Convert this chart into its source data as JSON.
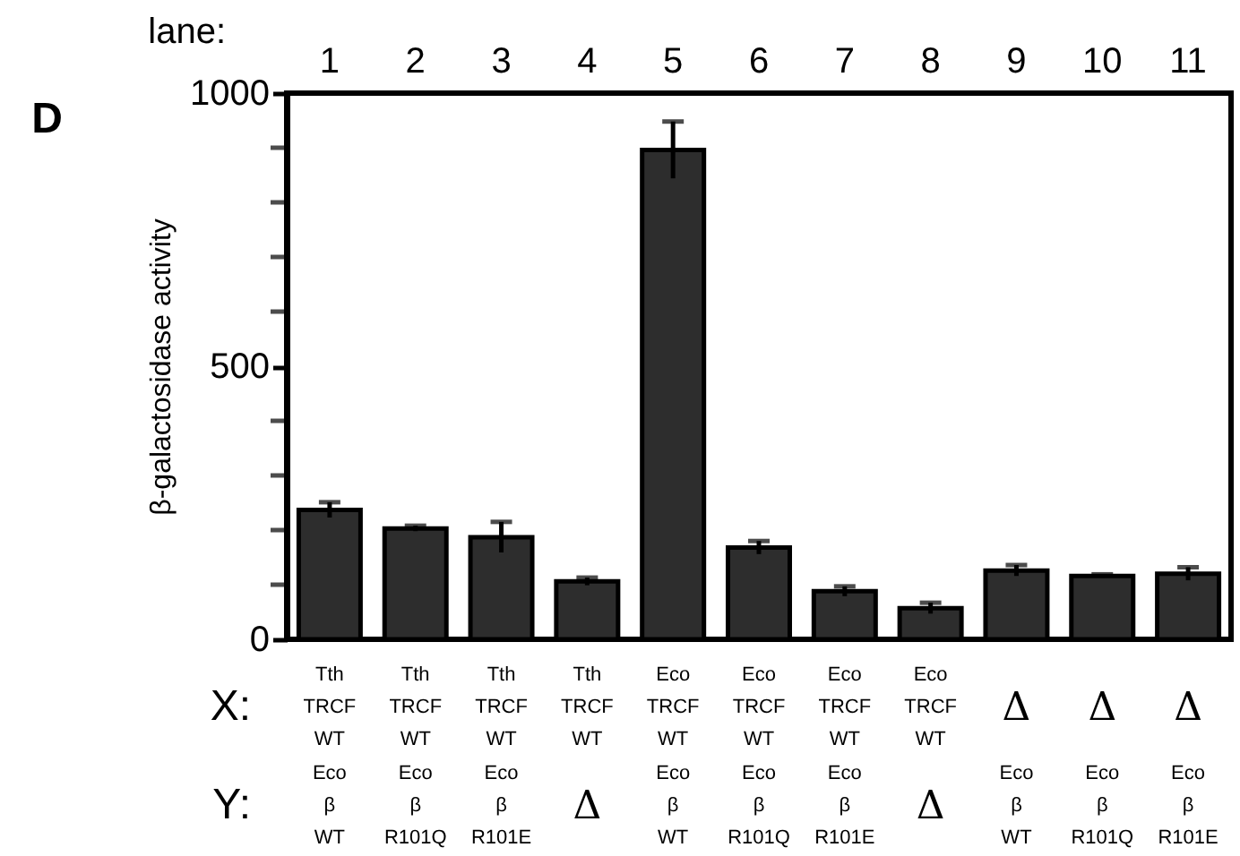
{
  "chart_data": {
    "type": "bar",
    "ylabel": "β-galactosidase activity",
    "categories": [
      "1",
      "2",
      "3",
      "4",
      "5",
      "6",
      "7",
      "8",
      "9",
      "10",
      "11"
    ],
    "values": [
      237,
      203,
      187,
      106,
      896,
      168,
      88,
      57,
      126,
      116,
      120
    ],
    "errors": [
      14,
      5,
      28,
      7,
      52,
      12,
      9,
      10,
      10,
      3,
      12
    ],
    "color": "#2d2d2d",
    "ylim": [
      0,
      1000
    ],
    "yticks": [
      0,
      {
        "value": 100,
        "label": null
      },
      {
        "value": 200,
        "label": null
      },
      {
        "value": 300,
        "label": null
      },
      {
        "value": 400,
        "label": null
      },
      500,
      {
        "value": 600,
        "label": null
      },
      {
        "value": 700,
        "label": null
      },
      {
        "value": 800,
        "label": null
      },
      {
        "value": 900,
        "label": null
      },
      1000
    ],
    "grid": false,
    "annotations": [
      "D",
      "lane:",
      "X:",
      "Y:",
      "Tth\nTRCF\nWT",
      "Tth\nTRCF\nWT",
      "Tth\nTRCF\nWT",
      "Tth\nTRCF\nWT",
      "Eco\nTRCF\nWT",
      "Eco\nTRCF\nWT",
      "Eco\nTRCF\nWT",
      "Eco\nTRCF\nWT",
      "Δ",
      "Δ",
      "Δ",
      "Eco\nβ\nWT",
      "Eco\nβ\nR101Q",
      "Eco\nβ\nR101E",
      "Δ",
      "Eco\nβ\nWT",
      "Eco\nβ\nR101Q",
      "Eco\nβ\nR101E",
      "Δ",
      "Eco\nβ\nWT",
      "Eco\nβ\nR101Q",
      "Eco\nβ\nR101E"
    ]
  }
}
